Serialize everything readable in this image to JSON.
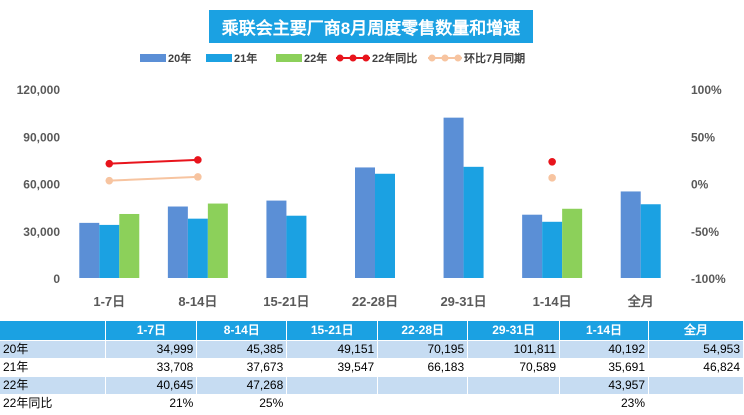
{
  "chart_data": {
    "type": "bar",
    "title": "乘联会主要厂商8月周度零售数量和增速",
    "categories": [
      "1-7日",
      "8-14日",
      "15-21日",
      "22-28日",
      "29-31日",
      "1-14日",
      "全月"
    ],
    "series": [
      {
        "name": "20年",
        "kind": "bar",
        "axis": "left",
        "color": "#5b8fd6",
        "values": [
          34999,
          45385,
          49151,
          70195,
          101811,
          40192,
          54953
        ]
      },
      {
        "name": "21年",
        "kind": "bar",
        "axis": "left",
        "color": "#1ba1e2",
        "values": [
          33708,
          37673,
          39547,
          66183,
          70589,
          35691,
          46824
        ]
      },
      {
        "name": "22年",
        "kind": "bar",
        "axis": "left",
        "color": "#8cd05a",
        "values": [
          40645,
          47268,
          null,
          null,
          null,
          43957,
          null
        ]
      },
      {
        "name": "22年同比",
        "kind": "line",
        "axis": "right",
        "color": "#e8141c",
        "values": [
          21,
          25,
          null,
          null,
          null,
          23,
          null
        ]
      },
      {
        "name": "环比7月同期",
        "kind": "line",
        "axis": "right",
        "color": "#f7c4a0",
        "values": [
          3,
          7,
          null,
          null,
          null,
          6,
          null
        ]
      }
    ],
    "left_ticks": [
      "120,000",
      "90,000",
      "60,000",
      "30,000",
      "0"
    ],
    "left_lim": [
      0,
      120000
    ],
    "right_ticks": [
      "100%",
      "50%",
      "0%",
      "-50%",
      "-100%"
    ],
    "right_lim": [
      -100,
      100
    ],
    "legend_position": "top",
    "grid": false
  },
  "table": {
    "header": [
      "",
      "1-7日",
      "8-14日",
      "15-21日",
      "22-28日",
      "29-31日",
      "1-14日",
      "全月"
    ],
    "rows": [
      {
        "label": "20年",
        "cells": [
          "34,999",
          "45,385",
          "49,151",
          "70,195",
          "101,811",
          "40,192",
          "54,953"
        ]
      },
      {
        "label": "21年",
        "cells": [
          "33,708",
          "37,673",
          "39,547",
          "66,183",
          "70,589",
          "35,691",
          "46,824"
        ]
      },
      {
        "label": "22年",
        "cells": [
          "40,645",
          "47,268",
          "",
          "",
          "",
          "43,957",
          ""
        ]
      },
      {
        "label": "22年同比",
        "cells": [
          "21%",
          "25%",
          "",
          "",
          "",
          "23%",
          ""
        ]
      }
    ]
  }
}
